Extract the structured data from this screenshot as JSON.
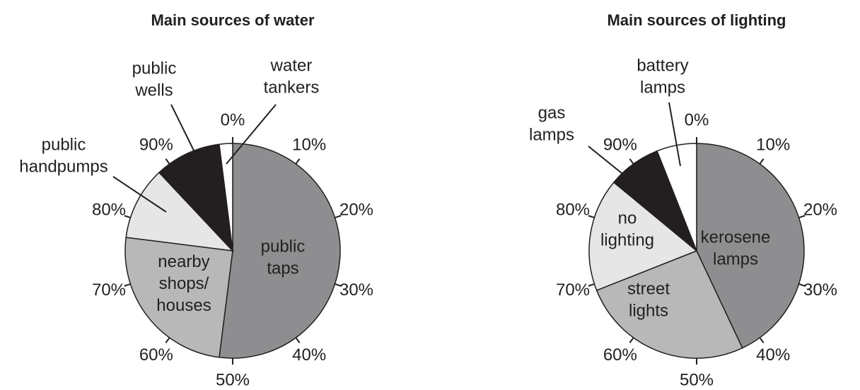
{
  "chart_data": [
    {
      "type": "pie",
      "title": "Main sources of water",
      "categories": [
        "public\ntaps",
        "nearby\nshops/\nhouses",
        "public\nhandpumps",
        "public\nwells",
        "water\ntankers"
      ],
      "values": [
        52,
        25,
        11,
        10,
        2
      ],
      "colors": [
        "#8e8e90",
        "#b8b8b8",
        "#e6e6e6",
        "#231f20",
        "#ffffff"
      ],
      "ticks": [
        {
          "value": 0,
          "label": "0%"
        },
        {
          "value": 10,
          "label": "10%"
        },
        {
          "value": 20,
          "label": "20%"
        },
        {
          "value": 30,
          "label": "30%"
        },
        {
          "value": 40,
          "label": "40%"
        },
        {
          "value": 50,
          "label": "50%"
        },
        {
          "value": 60,
          "label": "60%"
        },
        {
          "value": 70,
          "label": "70%"
        },
        {
          "value": 80,
          "label": "80%"
        },
        {
          "value": 90,
          "label": "90%"
        }
      ]
    },
    {
      "type": "pie",
      "title": "Main sources of lighting",
      "categories": [
        "kerosene\nlamps",
        "street\nlights",
        "no\nlighting",
        "gas\nlamps",
        "battery\nlamps"
      ],
      "values": [
        43,
        26,
        17,
        8,
        6
      ],
      "colors": [
        "#8e8e90",
        "#b8b8b8",
        "#e6e6e6",
        "#231f20",
        "#ffffff"
      ],
      "ticks": [
        {
          "value": 0,
          "label": "0%"
        },
        {
          "value": 10,
          "label": "10%"
        },
        {
          "value": 20,
          "label": "20%"
        },
        {
          "value": 30,
          "label": "30%"
        },
        {
          "value": 40,
          "label": "40%"
        },
        {
          "value": 50,
          "label": "50%"
        },
        {
          "value": 60,
          "label": "60%"
        },
        {
          "value": 70,
          "label": "70%"
        },
        {
          "value": 80,
          "label": "80%"
        },
        {
          "value": 90,
          "label": "90%"
        }
      ]
    }
  ]
}
